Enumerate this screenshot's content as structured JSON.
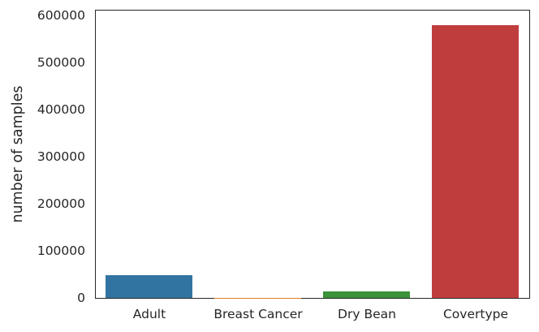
{
  "figure": {
    "background_color": "#ffffff",
    "spine_color": "#262626",
    "text_color": "#262626"
  },
  "chart_data": {
    "type": "bar",
    "title": "",
    "xlabel": "",
    "ylabel": "number of samples",
    "categories": [
      "Adult",
      "Breast Cancer",
      "Dry Bean",
      "Covertype"
    ],
    "values": [
      48842,
      569,
      13611,
      581012
    ],
    "bar_colors": [
      "#3274a1",
      "#e1812c",
      "#3a923a",
      "#c03d3e"
    ],
    "yticks": [
      0,
      100000,
      200000,
      300000,
      400000,
      500000,
      600000
    ],
    "ylim": [
      0,
      610000
    ],
    "grid": false,
    "legend": false
  }
}
